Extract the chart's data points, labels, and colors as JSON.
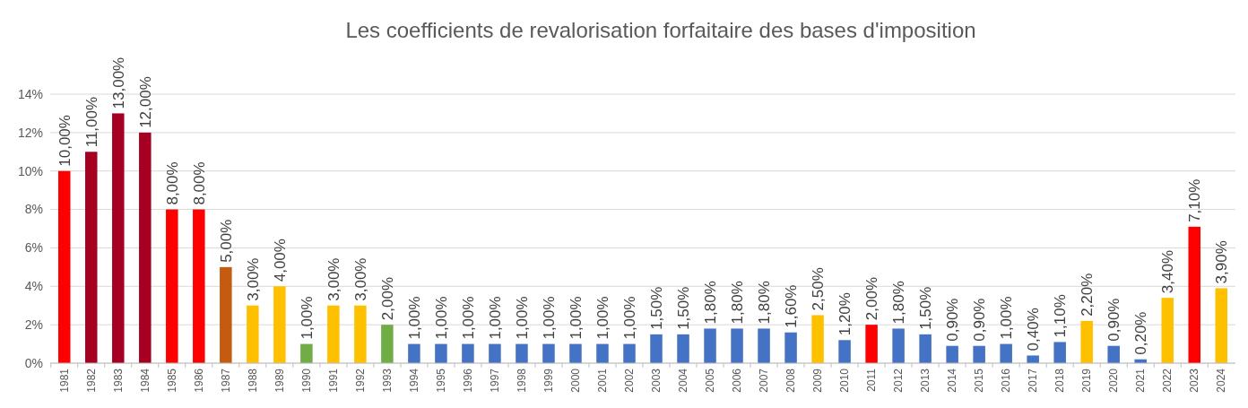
{
  "chart_data": {
    "type": "bar",
    "title": "Les coefficients de revalorisation forfaitaire des bases d'imposition",
    "categories": [
      "1981",
      "1982",
      "1983",
      "1984",
      "1985",
      "1986",
      "1987",
      "1988",
      "1989",
      "1990",
      "1991",
      "1992",
      "1993",
      "1994",
      "1995",
      "1996",
      "1997",
      "1998",
      "1999",
      "2000",
      "2001",
      "2002",
      "2003",
      "2004",
      "2005",
      "2006",
      "2007",
      "2008",
      "2009",
      "2010",
      "2011",
      "2012",
      "2013",
      "2014",
      "2015",
      "2016",
      "2017",
      "2018",
      "2019",
      "2020",
      "2021",
      "2022",
      "2023",
      "2024"
    ],
    "values": [
      10,
      11,
      13,
      12,
      8,
      8,
      5,
      3,
      4,
      1,
      3,
      3,
      2,
      1,
      1,
      1,
      1,
      1,
      1,
      1,
      1,
      1,
      1.5,
      1.5,
      1.8,
      1.8,
      1.8,
      1.6,
      2.5,
      1.2,
      2.0,
      1.8,
      1.5,
      0.9,
      0.9,
      1.0,
      0.4,
      1.1,
      2.2,
      0.9,
      0.2,
      3.4,
      7.1,
      3.9
    ],
    "value_labels": [
      "10,00%",
      "11,00%",
      "13,00%",
      "12,00%",
      "8,00%",
      "8,00%",
      "5,00%",
      "3,00%",
      "4,00%",
      "1,00%",
      "3,00%",
      "3,00%",
      "2,00%",
      "1,00%",
      "1,00%",
      "1,00%",
      "1,00%",
      "1,00%",
      "1,00%",
      "1,00%",
      "1,00%",
      "1,00%",
      "1,50%",
      "1,50%",
      "1,80%",
      "1,80%",
      "1,80%",
      "1,60%",
      "2,50%",
      "1,20%",
      "2,00%",
      "1,80%",
      "1,50%",
      "0,90%",
      "0,90%",
      "1,00%",
      "0,40%",
      "1,10%",
      "2,20%",
      "0,90%",
      "0,20%",
      "3,40%",
      "7,10%",
      "3,90%"
    ],
    "colors": [
      "#ff0000",
      "#a50021",
      "#a50021",
      "#a50021",
      "#ff0000",
      "#ff0000",
      "#c55a11",
      "#ffc000",
      "#ffc000",
      "#70ad47",
      "#ffc000",
      "#ffc000",
      "#70ad47",
      "#4472c4",
      "#4472c4",
      "#4472c4",
      "#4472c4",
      "#4472c4",
      "#4472c4",
      "#4472c4",
      "#4472c4",
      "#4472c4",
      "#4472c4",
      "#4472c4",
      "#4472c4",
      "#4472c4",
      "#4472c4",
      "#4472c4",
      "#ffc000",
      "#4472c4",
      "#ff0000",
      "#4472c4",
      "#4472c4",
      "#4472c4",
      "#4472c4",
      "#4472c4",
      "#4472c4",
      "#4472c4",
      "#ffc000",
      "#4472c4",
      "#4472c4",
      "#ffc000",
      "#ff0000",
      "#ffc000"
    ],
    "ylim": [
      0,
      14
    ],
    "yticks": [
      {
        "value": 0,
        "label": "0%"
      },
      {
        "value": 2,
        "label": "2%"
      },
      {
        "value": 4,
        "label": "4%"
      },
      {
        "value": 6,
        "label": "6%"
      },
      {
        "value": 8,
        "label": "8%"
      },
      {
        "value": 10,
        "label": "10%"
      },
      {
        "value": 12,
        "label": "12%"
      },
      {
        "value": 14,
        "label": "14%"
      }
    ],
    "grid": true
  }
}
